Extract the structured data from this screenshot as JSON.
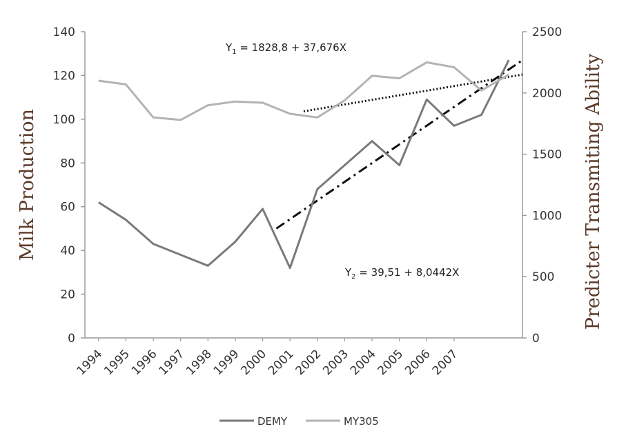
{
  "chart_data": {
    "type": "line",
    "x": [
      "1994",
      "1995",
      "1996",
      "1997",
      "1998",
      "1999",
      "2000",
      "2001",
      "2002",
      "2003",
      "2004",
      "2005",
      "2006",
      "2007",
      "",
      ""
    ],
    "series": [
      {
        "name": "DEMY",
        "axis": "left",
        "color": "#7a7a7a",
        "values": [
          62,
          54,
          43,
          38,
          33,
          44,
          59,
          32,
          68,
          79,
          90,
          79,
          109,
          97,
          102,
          127
        ]
      },
      {
        "name": "MY305",
        "axis": "right",
        "color": "#b3b3b3",
        "values": [
          2100,
          2070,
          1800,
          1780,
          1900,
          1930,
          1920,
          1830,
          1800,
          1940,
          2140,
          2120,
          2250,
          2210,
          2020,
          2150
        ]
      }
    ],
    "trendlines": [
      {
        "axis": "right",
        "style": "dotted",
        "color": "#111111",
        "x_start": 8,
        "x_end": 16,
        "y_start": 1850,
        "y_end": 2150
      },
      {
        "axis": "left",
        "style": "dash-dot",
        "color": "#111111",
        "x_start": 7,
        "x_end": 16,
        "y_start": 50,
        "y_end": 127
      }
    ],
    "ylabel": "Milk Production",
    "y2label": "Predicter Transmiting Ability",
    "ylim": [
      0,
      140
    ],
    "y2lim": [
      0,
      2500
    ],
    "yticks": [
      0,
      20,
      40,
      60,
      80,
      100,
      120,
      140
    ],
    "y2ticks": [
      0,
      500,
      1000,
      1500,
      2000,
      2500
    ],
    "grid": false,
    "legend_position": "bottom",
    "annotations": [
      {
        "pre": "Y",
        "sub": "1",
        "post": " =  1828,8 + 37,676X"
      },
      {
        "pre": "Y",
        "sub": "2",
        "post": " = 39,51 +  8,0442X"
      }
    ]
  }
}
